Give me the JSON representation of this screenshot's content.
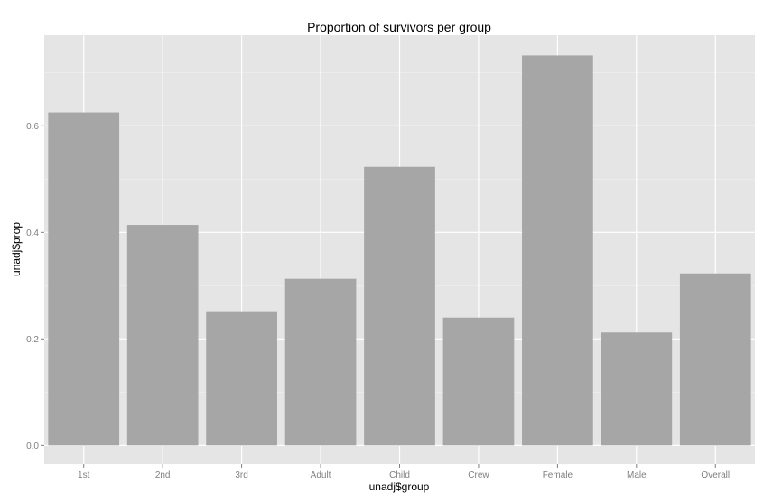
{
  "chart_data": {
    "type": "bar",
    "title": "Proportion of survivors per group",
    "xlabel": "unadj$group",
    "ylabel": "unadj$prop",
    "categories": [
      "1st",
      "2nd",
      "3rd",
      "Adult",
      "Child",
      "Crew",
      "Female",
      "Male",
      "Overall"
    ],
    "values": [
      0.625,
      0.414,
      0.252,
      0.313,
      0.523,
      0.24,
      0.732,
      0.212,
      0.323
    ],
    "ylim": [
      -0.035,
      0.77
    ],
    "yticks": [
      0.0,
      0.2,
      0.4,
      0.6
    ],
    "ytick_labels": [
      "0.0",
      "0.2",
      "0.4",
      "0.6"
    ],
    "grid": true,
    "colors": {
      "panel": "#e5e5e5",
      "bar": "#a6a6a6",
      "grid_major": "#ffffff",
      "grid_minor": "#f0f0f0"
    }
  }
}
